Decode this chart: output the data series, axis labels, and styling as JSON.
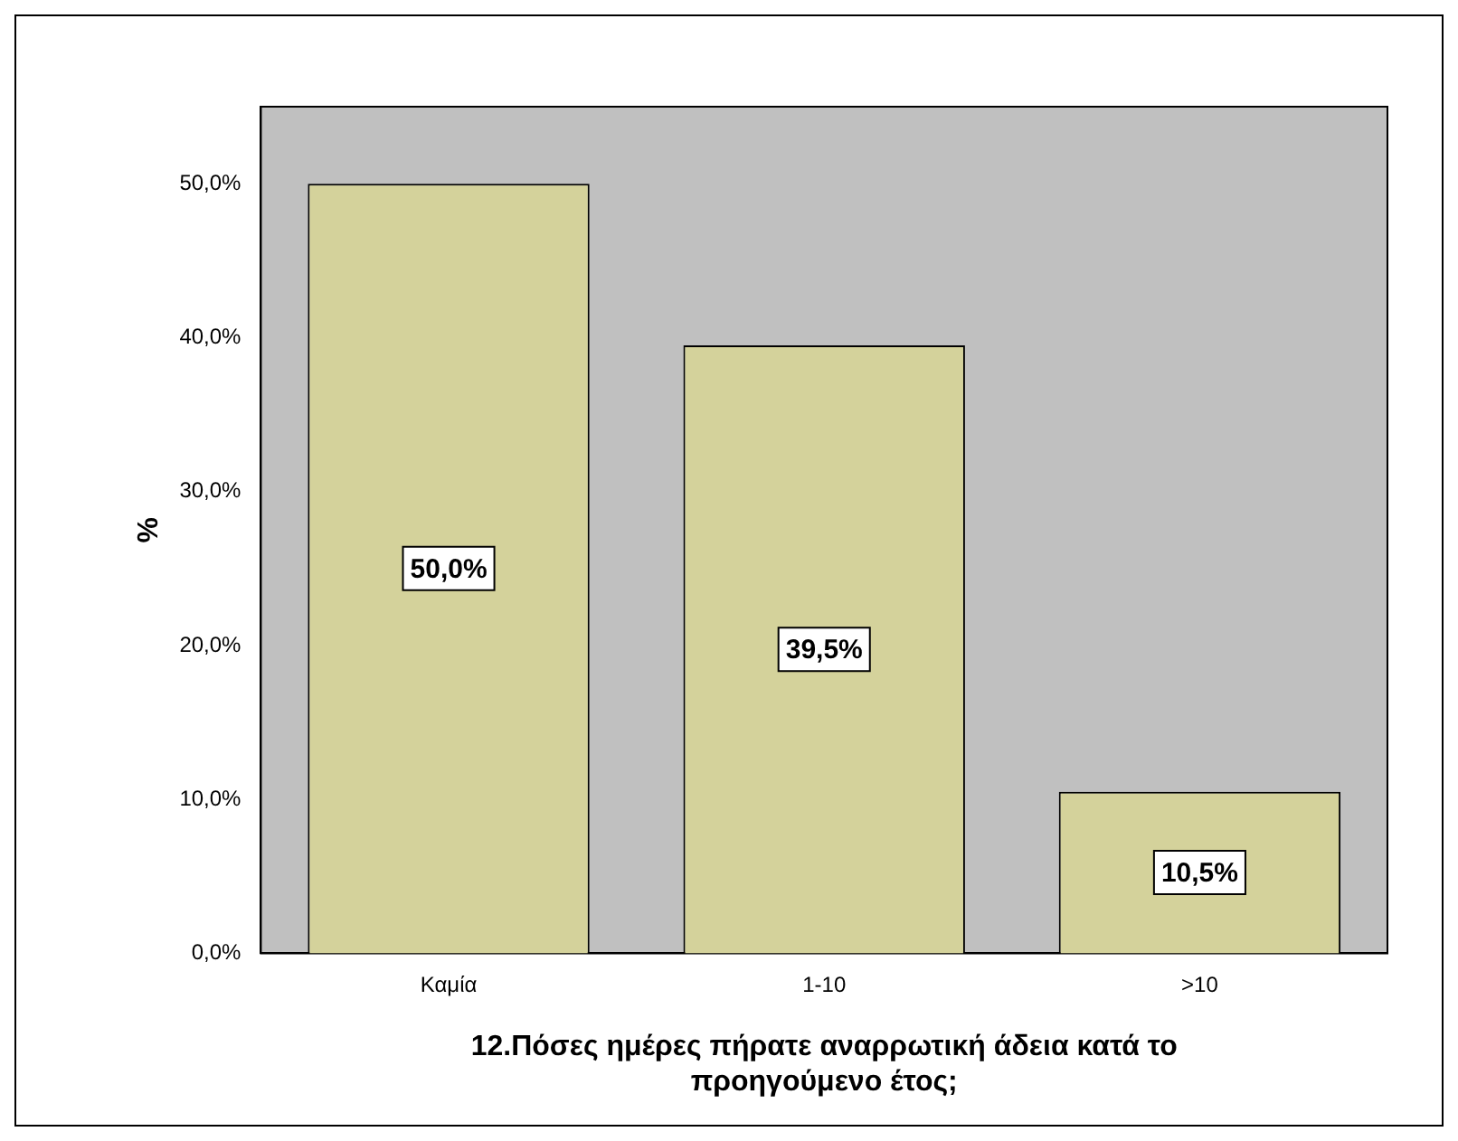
{
  "chart_data": {
    "type": "bar",
    "ylabel": "%",
    "xlabel": "12.Πόσες ημέρες πήρατε αναρρωτική άδεια κατά το προηγούμενο έτος;",
    "categories": [
      "Καμία",
      "1-10",
      ">10"
    ],
    "values": [
      50.0,
      39.5,
      10.5
    ],
    "value_labels": [
      "50,0%",
      "39,5%",
      "10,5%"
    ],
    "color": "#d4d29b",
    "ylim": [
      0,
      55
    ],
    "yticks": [
      {
        "value": 0,
        "label": "0,0%"
      },
      {
        "value": 10,
        "label": "10,0%"
      },
      {
        "value": 20,
        "label": "20,0%"
      },
      {
        "value": 30,
        "label": "30,0%"
      },
      {
        "value": 40,
        "label": "40,0%"
      },
      {
        "value": 50,
        "label": "50,0%"
      }
    ],
    "grid": false,
    "legend": false
  }
}
